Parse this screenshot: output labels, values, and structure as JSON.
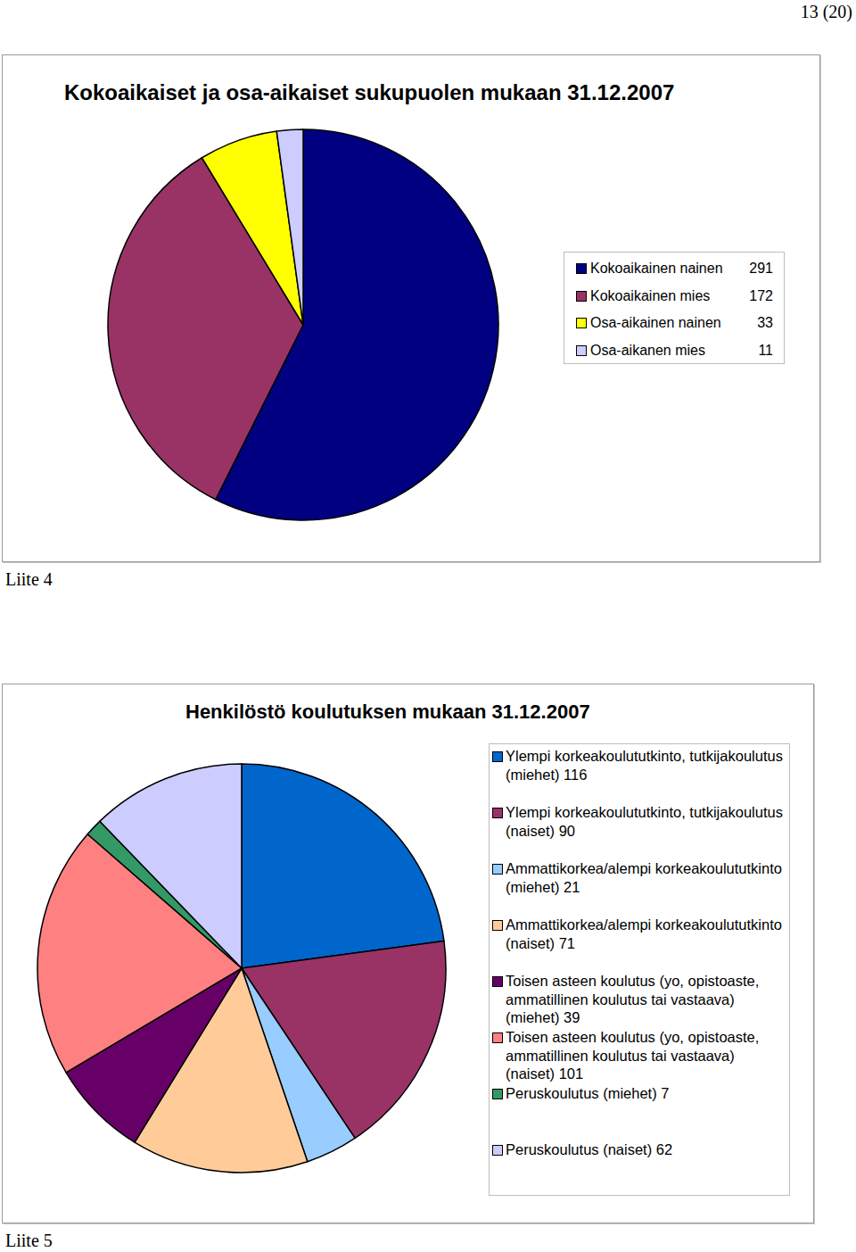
{
  "page": {
    "page_number": "13 (20)",
    "appendix_labels": [
      "Liite 4",
      "Liite 5"
    ]
  },
  "chart_data": [
    {
      "type": "pie",
      "title": "Kokoaikaiset ja osa-aikaiset sukupuolen mukaan 31.12.2007",
      "categories": [
        "Kokoaikainen nainen",
        "Kokoaikainen mies",
        "Osa-aikainen nainen",
        "Osa-aikanen mies"
      ],
      "values": [
        291,
        172,
        33,
        11
      ],
      "colors": [
        "#000080",
        "#993366",
        "#ffff00",
        "#ccccff"
      ],
      "legend": "right"
    },
    {
      "type": "pie",
      "title": "Henkilöstö koulutuksen mukaan 31.12.2007",
      "categories": [
        "Ylempi korkeakoulututkinto, tutkijakoulutus (miehet)",
        "Ylempi korkeakoulututkinto, tutkijakoulutus (naiset)",
        "Ammattikorkea/alempi korkeakoulututkinto (miehet)",
        "Ammattikorkea/alempi korkeakoulututkinto (naiset)",
        "Toisen asteen koulutus (yo, opistoaste, ammatillinen koulutus tai vastaava) (miehet)",
        "Toisen asteen koulutus (yo, opistoaste, ammatillinen koulutus tai vastaava) (naiset)",
        "Peruskoulutus (miehet)",
        "Peruskoulutus (naiset)"
      ],
      "values": [
        116,
        90,
        21,
        71,
        39,
        101,
        7,
        62
      ],
      "colors": [
        "#0066cc",
        "#993366",
        "#99ccff",
        "#ffcc99",
        "#660066",
        "#ff8080",
        "#339966",
        "#ccccff"
      ],
      "legend": "right"
    }
  ]
}
